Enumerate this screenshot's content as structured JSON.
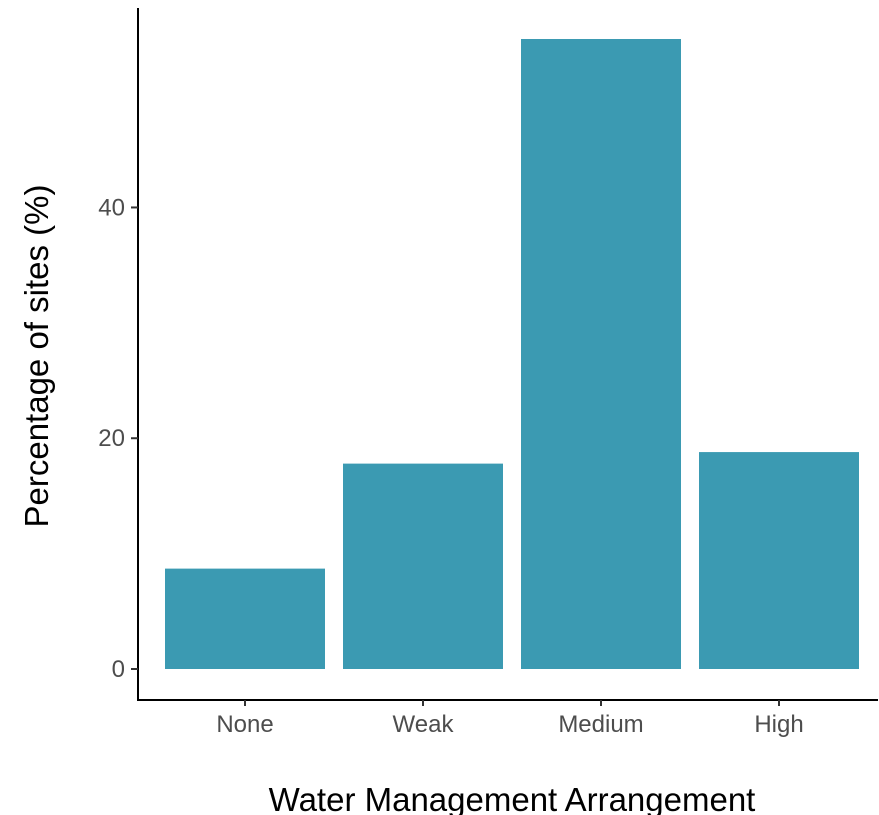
{
  "chart_data": {
    "type": "bar",
    "categories": [
      "None",
      "Weak",
      "Medium",
      "High"
    ],
    "values": [
      8.7,
      17.8,
      54.6,
      18.8
    ],
    "title": "",
    "xlabel": "Water Management Arrangement",
    "ylabel": "Percentage of sites (%)",
    "ylim": [
      0,
      57.2
    ],
    "yticks": [
      0,
      20,
      40
    ],
    "grid": false,
    "legend": "none",
    "bar_color": "#3b9ab2"
  }
}
